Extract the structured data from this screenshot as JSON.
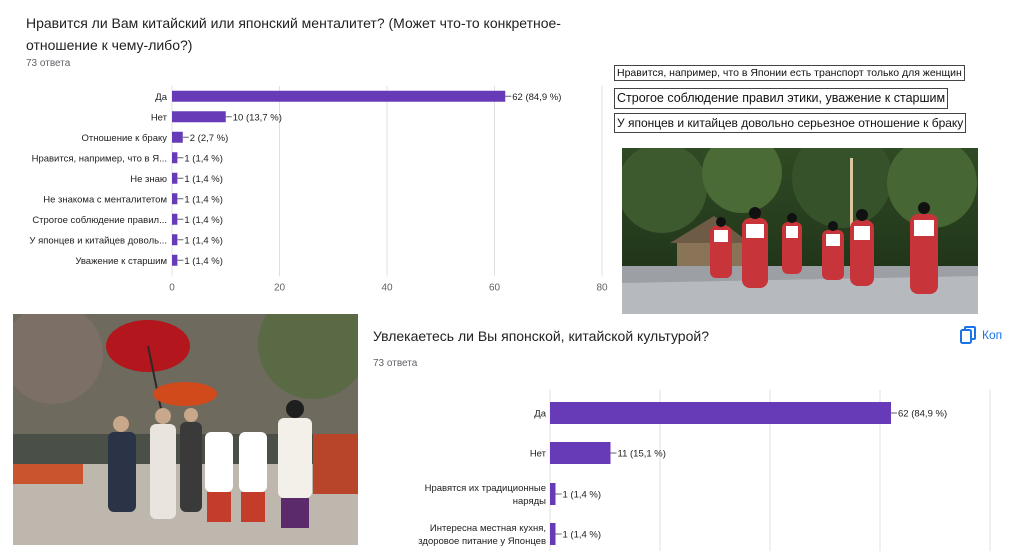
{
  "question1": {
    "title_line1": "Нравится ли Вам китайский или японский менталитет? (Может что-то конкретное-",
    "title_line2": "отношение к чему-либо?)",
    "count": "73 ответа"
  },
  "question2": {
    "title": "Увлекаетесь ли Вы японской, китайской культурой?",
    "count": "73 ответа",
    "copy_label": "Коп"
  },
  "snippets": [
    "Нравится, например, что в Японии есть транспорт только для женщин",
    "Строгое соблюдение правил этики, уважение к старшим",
    "У японцев и китайцев довольно серьезное отношение к браку"
  ],
  "colors": {
    "bar": "#673ab7",
    "grid": "#e0e0e0",
    "text": "#202124",
    "muted": "#5f6368",
    "accent": "#1a73e8"
  },
  "chart_data": [
    {
      "type": "bar",
      "orientation": "horizontal",
      "categories": [
        "Да",
        "Нет",
        "Отношение к браку",
        "Нравится, например, что в Я...",
        "Не знаю",
        "Не знакома с менталитетом",
        "Строгое соблюдение правил...",
        "У японцев и китайцев доволь...",
        "Уважение к старшим"
      ],
      "values": [
        62,
        10,
        2,
        1,
        1,
        1,
        1,
        1,
        1
      ],
      "data_labels": [
        "62 (84,9 %)",
        "10 (13,7 %)",
        "2 (2,7 %)",
        "1 (1,4 %)",
        "1 (1,4 %)",
        "1 (1,4 %)",
        "1 (1,4 %)",
        "1 (1,4 %)",
        "1 (1,4 %)"
      ],
      "xlim": [
        0,
        80
      ],
      "xticks": [
        "0",
        "20",
        "40",
        "60",
        "80"
      ],
      "grid": true
    },
    {
      "type": "bar",
      "orientation": "horizontal",
      "categories": [
        "Да",
        "Нет",
        "Нравятся их традиционные наряды",
        "Интересна местная кухня, здоровое питание у Японцев"
      ],
      "category_lines": [
        [
          "Да"
        ],
        [
          "Нет"
        ],
        [
          "Нравятся их традиционные",
          "наряды"
        ],
        [
          "Интересна местная кухня,",
          "здоровое питание у Японцев"
        ]
      ],
      "values": [
        62,
        11,
        1,
        1
      ],
      "data_labels": [
        "62 (84,9 %)",
        "11 (15,1 %)",
        "1 (1,4 %)",
        "1 (1,4 %)"
      ],
      "xlim": [
        0,
        80
      ],
      "grid": true
    }
  ]
}
